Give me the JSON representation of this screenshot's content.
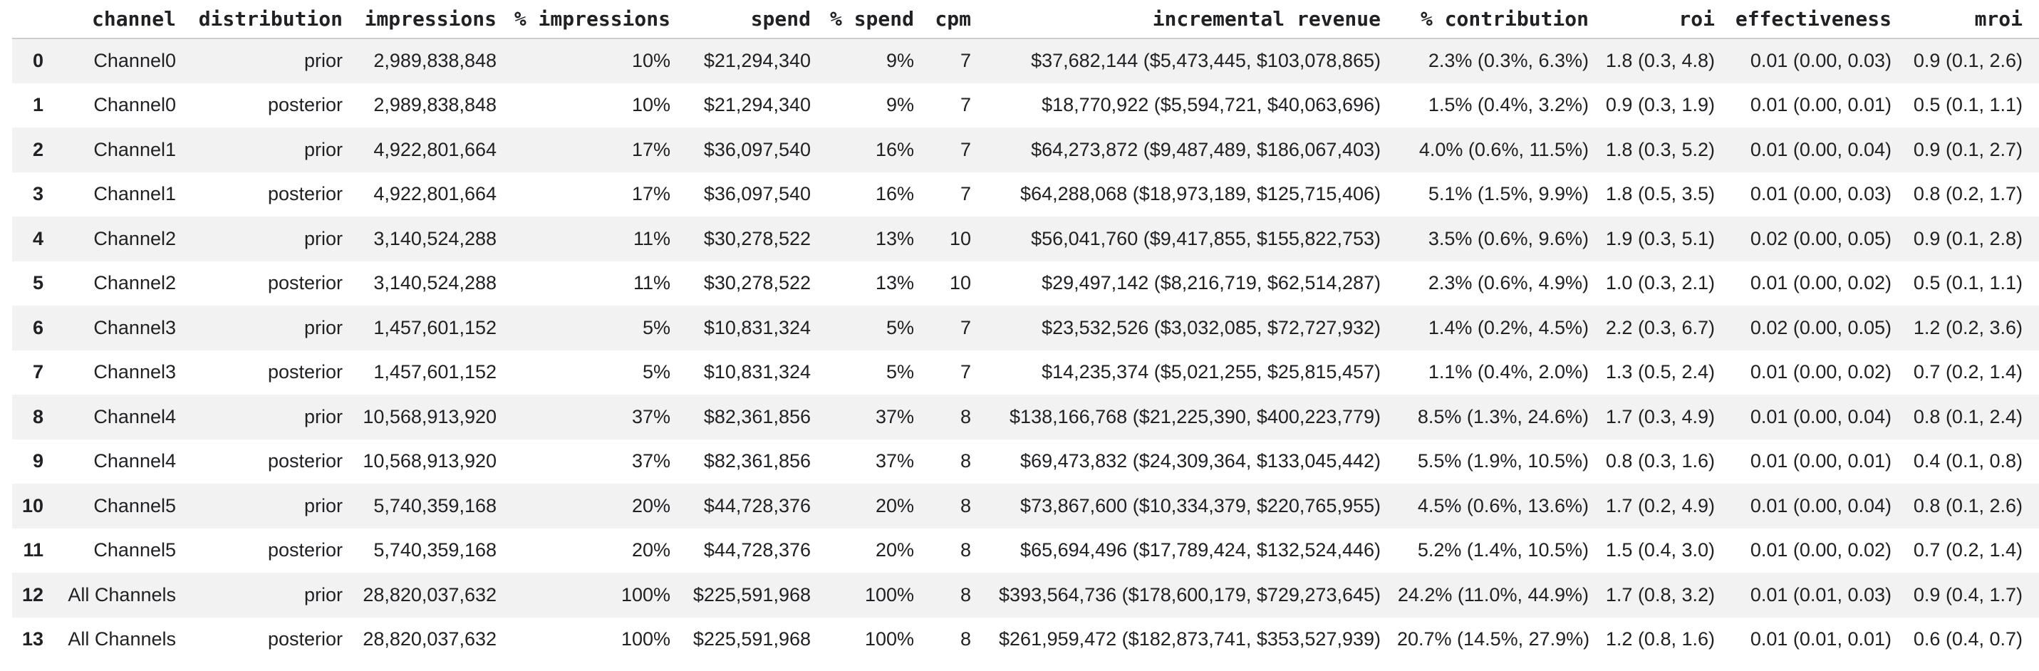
{
  "table": {
    "index_header": "",
    "columns": [
      "channel",
      "distribution",
      "impressions",
      "% impressions",
      "spend",
      "% spend",
      "cpm",
      "incremental revenue",
      "% contribution",
      "roi",
      "effectiveness",
      "mroi"
    ],
    "rows": [
      {
        "index": "0",
        "cells": [
          "Channel0",
          "prior",
          "2,989,838,848",
          "10%",
          "$21,294,340",
          "9%",
          "7",
          "$37,682,144 ($5,473,445, $103,078,865)",
          "2.3% (0.3%, 6.3%)",
          "1.8 (0.3, 4.8)",
          "0.01 (0.00, 0.03)",
          "0.9 (0.1, 2.6)"
        ]
      },
      {
        "index": "1",
        "cells": [
          "Channel0",
          "posterior",
          "2,989,838,848",
          "10%",
          "$21,294,340",
          "9%",
          "7",
          "$18,770,922 ($5,594,721, $40,063,696)",
          "1.5% (0.4%, 3.2%)",
          "0.9 (0.3, 1.9)",
          "0.01 (0.00, 0.01)",
          "0.5 (0.1, 1.1)"
        ]
      },
      {
        "index": "2",
        "cells": [
          "Channel1",
          "prior",
          "4,922,801,664",
          "17%",
          "$36,097,540",
          "16%",
          "7",
          "$64,273,872 ($9,487,489, $186,067,403)",
          "4.0% (0.6%, 11.5%)",
          "1.8 (0.3, 5.2)",
          "0.01 (0.00, 0.04)",
          "0.9 (0.1, 2.7)"
        ]
      },
      {
        "index": "3",
        "cells": [
          "Channel1",
          "posterior",
          "4,922,801,664",
          "17%",
          "$36,097,540",
          "16%",
          "7",
          "$64,288,068 ($18,973,189, $125,715,406)",
          "5.1% (1.5%, 9.9%)",
          "1.8 (0.5, 3.5)",
          "0.01 (0.00, 0.03)",
          "0.8 (0.2, 1.7)"
        ]
      },
      {
        "index": "4",
        "cells": [
          "Channel2",
          "prior",
          "3,140,524,288",
          "11%",
          "$30,278,522",
          "13%",
          "10",
          "$56,041,760 ($9,417,855, $155,822,753)",
          "3.5% (0.6%, 9.6%)",
          "1.9 (0.3, 5.1)",
          "0.02 (0.00, 0.05)",
          "0.9 (0.1, 2.8)"
        ]
      },
      {
        "index": "5",
        "cells": [
          "Channel2",
          "posterior",
          "3,140,524,288",
          "11%",
          "$30,278,522",
          "13%",
          "10",
          "$29,497,142 ($8,216,719, $62,514,287)",
          "2.3% (0.6%, 4.9%)",
          "1.0 (0.3, 2.1)",
          "0.01 (0.00, 0.02)",
          "0.5 (0.1, 1.1)"
        ]
      },
      {
        "index": "6",
        "cells": [
          "Channel3",
          "prior",
          "1,457,601,152",
          "5%",
          "$10,831,324",
          "5%",
          "7",
          "$23,532,526 ($3,032,085, $72,727,932)",
          "1.4% (0.2%, 4.5%)",
          "2.2 (0.3, 6.7)",
          "0.02 (0.00, 0.05)",
          "1.2 (0.2, 3.6)"
        ]
      },
      {
        "index": "7",
        "cells": [
          "Channel3",
          "posterior",
          "1,457,601,152",
          "5%",
          "$10,831,324",
          "5%",
          "7",
          "$14,235,374 ($5,021,255, $25,815,457)",
          "1.1% (0.4%, 2.0%)",
          "1.3 (0.5, 2.4)",
          "0.01 (0.00, 0.02)",
          "0.7 (0.2, 1.4)"
        ]
      },
      {
        "index": "8",
        "cells": [
          "Channel4",
          "prior",
          "10,568,913,920",
          "37%",
          "$82,361,856",
          "37%",
          "8",
          "$138,166,768 ($21,225,390, $400,223,779)",
          "8.5% (1.3%, 24.6%)",
          "1.7 (0.3, 4.9)",
          "0.01 (0.00, 0.04)",
          "0.8 (0.1, 2.4)"
        ]
      },
      {
        "index": "9",
        "cells": [
          "Channel4",
          "posterior",
          "10,568,913,920",
          "37%",
          "$82,361,856",
          "37%",
          "8",
          "$69,473,832 ($24,309,364, $133,045,442)",
          "5.5% (1.9%, 10.5%)",
          "0.8 (0.3, 1.6)",
          "0.01 (0.00, 0.01)",
          "0.4 (0.1, 0.8)"
        ]
      },
      {
        "index": "10",
        "cells": [
          "Channel5",
          "prior",
          "5,740,359,168",
          "20%",
          "$44,728,376",
          "20%",
          "8",
          "$73,867,600 ($10,334,379, $220,765,955)",
          "4.5% (0.6%, 13.6%)",
          "1.7 (0.2, 4.9)",
          "0.01 (0.00, 0.04)",
          "0.8 (0.1, 2.6)"
        ]
      },
      {
        "index": "11",
        "cells": [
          "Channel5",
          "posterior",
          "5,740,359,168",
          "20%",
          "$44,728,376",
          "20%",
          "8",
          "$65,694,496 ($17,789,424, $132,524,446)",
          "5.2% (1.4%, 10.5%)",
          "1.5 (0.4, 3.0)",
          "0.01 (0.00, 0.02)",
          "0.7 (0.2, 1.4)"
        ]
      },
      {
        "index": "12",
        "cells": [
          "All Channels",
          "prior",
          "28,820,037,632",
          "100%",
          "$225,591,968",
          "100%",
          "8",
          "$393,564,736 ($178,600,179, $729,273,645)",
          "24.2% (11.0%, 44.9%)",
          "1.7 (0.8, 3.2)",
          "0.01 (0.01, 0.03)",
          "0.9 (0.4, 1.7)"
        ]
      },
      {
        "index": "13",
        "cells": [
          "All Channels",
          "posterior",
          "28,820,037,632",
          "100%",
          "$225,591,968",
          "100%",
          "8",
          "$261,959,472 ($182,873,741, $353,527,939)",
          "20.7% (14.5%, 27.9%)",
          "1.2 (0.8, 1.6)",
          "0.01 (0.01, 0.01)",
          "0.6 (0.4, 0.7)"
        ]
      }
    ]
  },
  "colors": {
    "background": "#ffffff",
    "row_stripe": "#f2f2f2",
    "header_border": "#cdcdcd",
    "text": "#202124"
  }
}
